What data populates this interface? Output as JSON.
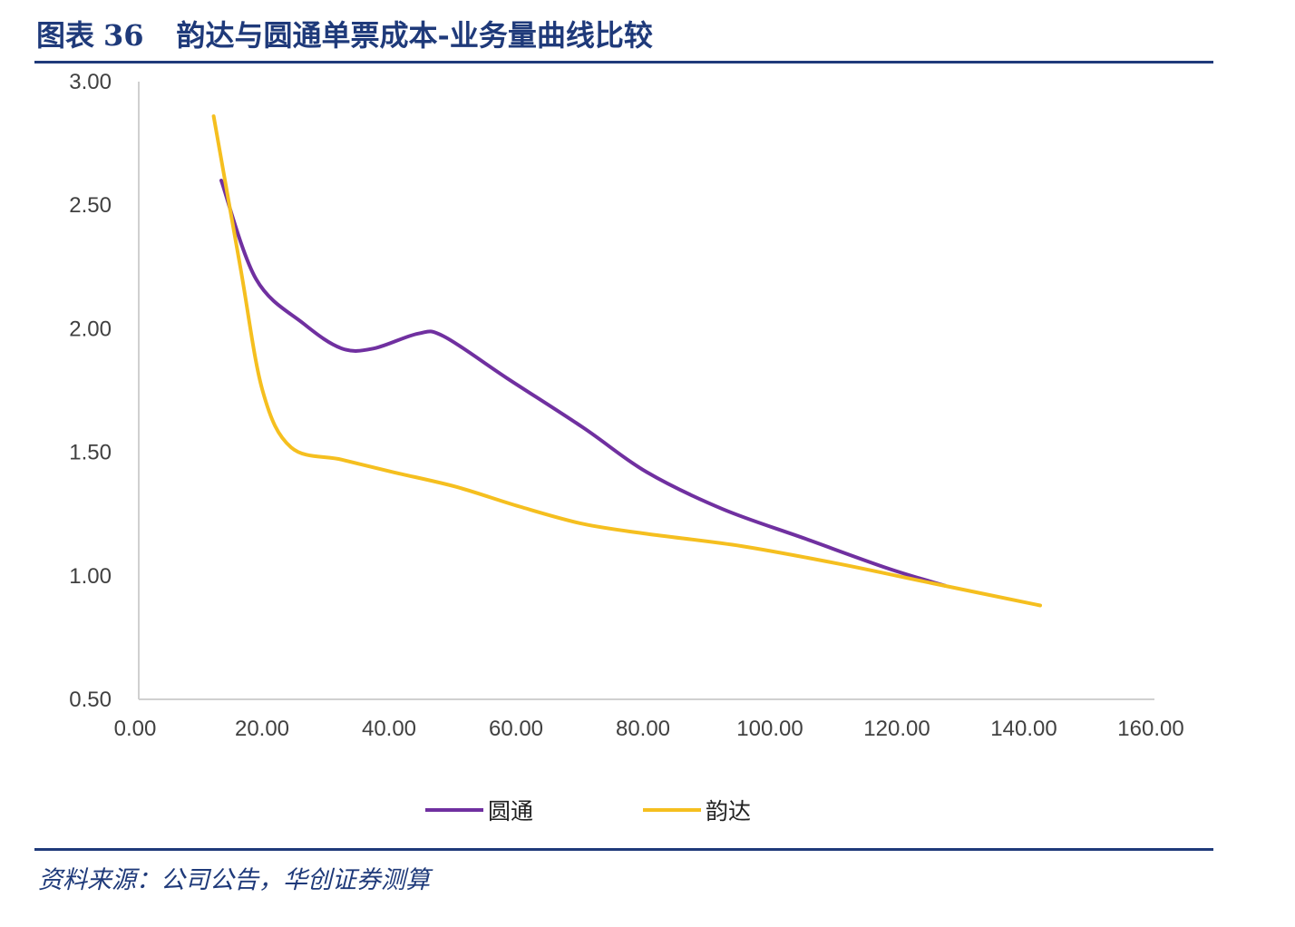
{
  "figure": {
    "title_prefix": "图表",
    "title_number": "36",
    "title_text": "韵达与圆通单票成本-业务量曲线比较",
    "source": "资料来源：公司公告，华创证券测算"
  },
  "colors": {
    "title_blue": "#1f3a7a",
    "yuantong": "#7030a0",
    "yunda": "#f5bf1f",
    "axis": "#d0d0d0"
  },
  "chart_data": {
    "type": "line",
    "title": "",
    "xlabel": "",
    "ylabel": "",
    "xlim": [
      0,
      160
    ],
    "ylim": [
      0.5,
      3.0
    ],
    "x_ticks": [
      "0.00",
      "20.00",
      "40.00",
      "60.00",
      "80.00",
      "100.00",
      "120.00",
      "140.00",
      "160.00"
    ],
    "y_ticks": [
      "0.50",
      "1.00",
      "1.50",
      "2.00",
      "2.50",
      "3.00"
    ],
    "x_tick_values": [
      0,
      20,
      40,
      60,
      80,
      100,
      120,
      140,
      160
    ],
    "y_tick_values": [
      0.5,
      1.0,
      1.5,
      2.0,
      2.5,
      3.0
    ],
    "grid": false,
    "legend_position": "bottom-center",
    "series": [
      {
        "name": "圆通",
        "color": "#7030a0",
        "points": [
          [
            13,
            2.6
          ],
          [
            18.5,
            2.2
          ],
          [
            26,
            2.02
          ],
          [
            32,
            1.92
          ],
          [
            37,
            1.92
          ],
          [
            44,
            1.98
          ],
          [
            48,
            1.97
          ],
          [
            58,
            1.8
          ],
          [
            70,
            1.6
          ],
          [
            80,
            1.42
          ],
          [
            92,
            1.27
          ],
          [
            105,
            1.15
          ],
          [
            118,
            1.03
          ],
          [
            127,
            0.96
          ]
        ]
      },
      {
        "name": "韵达",
        "color": "#f5bf1f",
        "points": [
          [
            11.8,
            2.86
          ],
          [
            16,
            2.25
          ],
          [
            19.5,
            1.75
          ],
          [
            24,
            1.52
          ],
          [
            32,
            1.47
          ],
          [
            40,
            1.42
          ],
          [
            50,
            1.36
          ],
          [
            60,
            1.28
          ],
          [
            70,
            1.21
          ],
          [
            80,
            1.17
          ],
          [
            95,
            1.12
          ],
          [
            110,
            1.05
          ],
          [
            125,
            0.97
          ],
          [
            142,
            0.88
          ]
        ]
      }
    ]
  }
}
